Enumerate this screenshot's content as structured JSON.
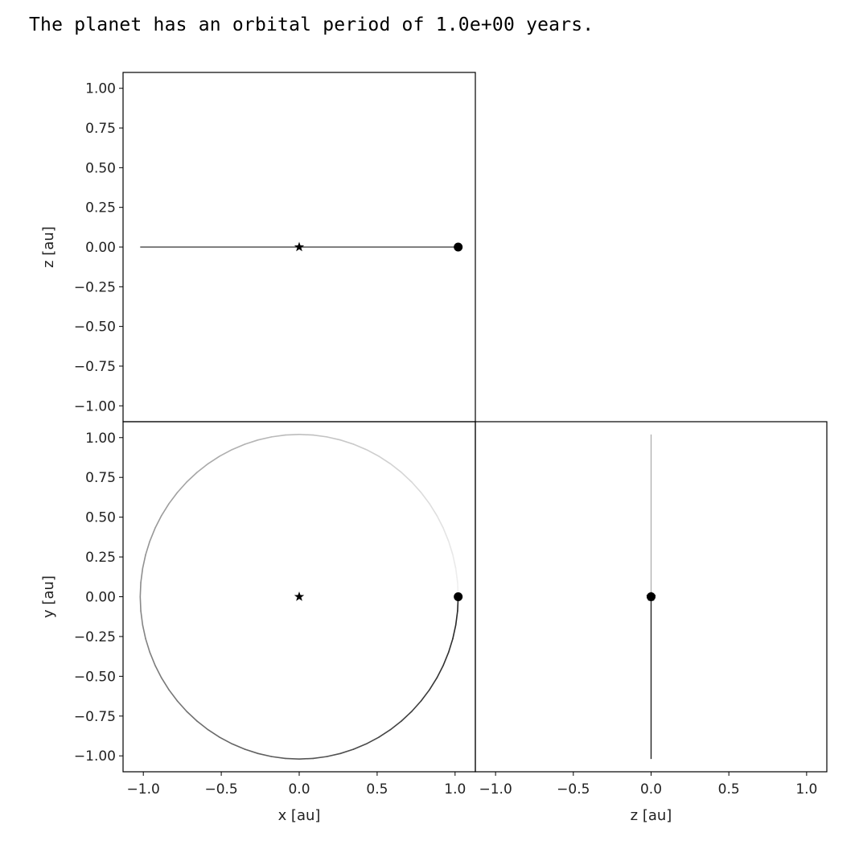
{
  "output": {
    "text": "The planet has an orbital period of 1.0e+00 years."
  },
  "chart_data": [
    {
      "type": "line",
      "panel": "top-left",
      "xlabel": "",
      "ylabel": "z [au]",
      "xlim": [
        -1.13,
        1.13
      ],
      "ylim": [
        -1.1,
        1.1
      ],
      "x_ticks": [],
      "y_ticks": [
        "1.00",
        "0.75",
        "0.50",
        "0.25",
        "0.00",
        "−0.25",
        "−0.50",
        "−0.75",
        "−1.00"
      ],
      "y_tick_values": [
        1.0,
        0.75,
        0.5,
        0.25,
        0.0,
        -0.25,
        -0.5,
        -0.75,
        -1.0
      ],
      "orbit": {
        "x_range": [
          -1.02,
          1.02
        ],
        "z": 0.0
      },
      "star": {
        "x": 0.0,
        "z": 0.0
      },
      "planet": {
        "x": 1.02,
        "z": 0.0
      }
    },
    {
      "type": "line",
      "panel": "bottom-left",
      "xlabel": "x [au]",
      "ylabel": "y [au]",
      "xlim": [
        -1.13,
        1.13
      ],
      "ylim": [
        -1.1,
        1.1
      ],
      "x_ticks": [
        "−1.0",
        "−0.5",
        "0.0",
        "0.5",
        "1.0"
      ],
      "x_tick_values": [
        -1.0,
        -0.5,
        0.0,
        0.5,
        1.0
      ],
      "y_ticks": [
        "1.00",
        "0.75",
        "0.50",
        "0.25",
        "0.00",
        "−0.25",
        "−0.50",
        "−0.75",
        "−1.00"
      ],
      "y_tick_values": [
        1.0,
        0.75,
        0.5,
        0.25,
        0.0,
        -0.25,
        -0.5,
        -0.75,
        -1.0
      ],
      "orbit": {
        "radius": 1.02,
        "center": [
          0.0,
          0.0
        ]
      },
      "star": {
        "x": 0.0,
        "y": 0.0
      },
      "planet": {
        "x": 1.02,
        "y": 0.0
      }
    },
    {
      "type": "line",
      "panel": "bottom-right",
      "xlabel": "z [au]",
      "ylabel": "",
      "xlim": [
        -1.13,
        1.13
      ],
      "ylim": [
        -1.1,
        1.1
      ],
      "x_ticks": [
        "−1.0",
        "−0.5",
        "0.0",
        "0.5",
        "1.0"
      ],
      "x_tick_values": [
        -1.0,
        -0.5,
        0.0,
        0.5,
        1.0
      ],
      "y_ticks": [],
      "orbit": {
        "z": 0.0,
        "y_range": [
          -1.02,
          1.02
        ]
      },
      "star": {
        "z": 0.0,
        "y": 0.0
      },
      "planet": {
        "z": 0.0,
        "y": 0.0
      }
    }
  ]
}
